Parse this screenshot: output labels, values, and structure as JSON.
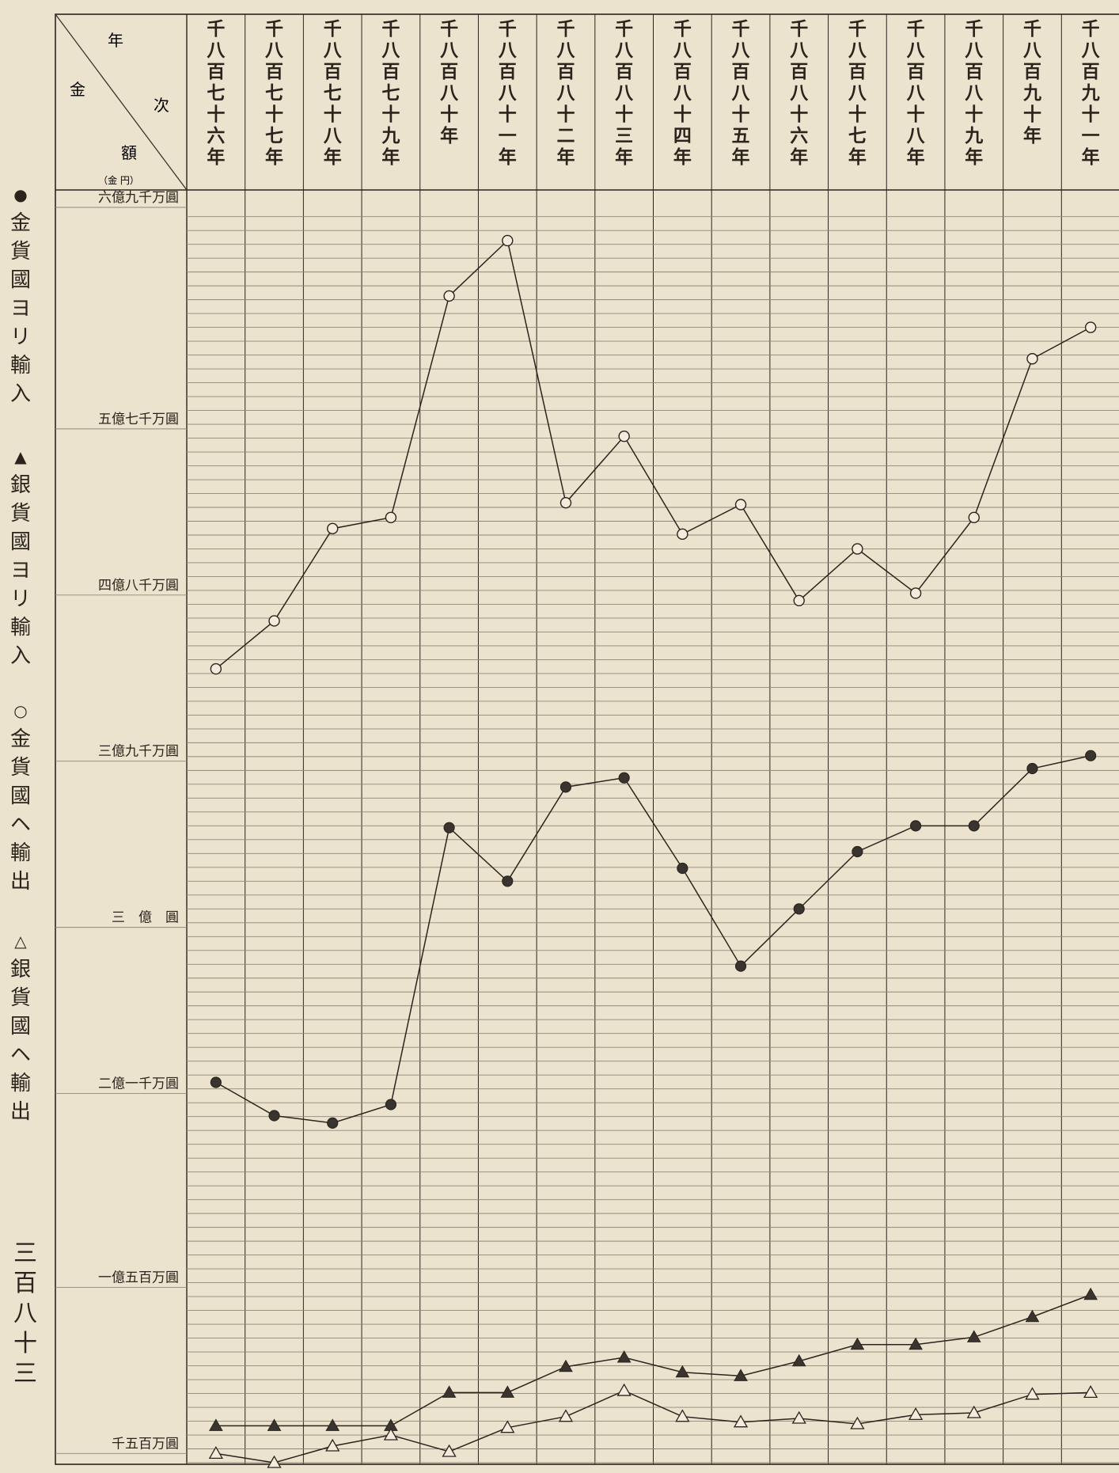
{
  "page_number": "三百八十三",
  "header": {
    "year": "年",
    "gold": "金",
    "next": "次",
    "amount": "額",
    "unit": "（金 円）"
  },
  "legend": [
    {
      "symbol": "●",
      "text": "金貨國ヨリ輸入",
      "icon": "filled-circle-icon"
    },
    {
      "symbol": "▲",
      "text": "銀貨國ヨリ輸入",
      "icon": "filled-triangle-icon"
    },
    {
      "symbol": "○",
      "text": "金貨國ヘ輸出",
      "icon": "open-circle-icon"
    },
    {
      "symbol": "△",
      "text": "銀貨國ヘ輸出",
      "icon": "open-triangle-icon"
    }
  ],
  "colors": {
    "paper": "#ece3cf",
    "ink": "#2a241c",
    "grid": "#8f8678"
  },
  "chart_data": {
    "type": "line",
    "title": "",
    "xlabel": "年",
    "ylabel": "金額",
    "categories": [
      "千八百七十六年",
      "千八百七十七年",
      "千八百七十八年",
      "千八百七十九年",
      "千八百八十年",
      "千八百八十一年",
      "千八百八十二年",
      "千八百八十三年",
      "千八百八十四年",
      "千八百八十五年",
      "千八百八十六年",
      "千八百八十七年",
      "千八百八十八年",
      "千八百八十九年",
      "千八百九十年",
      "千八百九十一年"
    ],
    "y_ticks": [
      {
        "value": 690,
        "label": "六億九千万圓"
      },
      {
        "value": 570,
        "label": "五億七千万圓"
      },
      {
        "value": 480,
        "label": "四億八千万圓"
      },
      {
        "value": 390,
        "label": "三億九千万圓"
      },
      {
        "value": 300,
        "label": "三　億　圓"
      },
      {
        "value": 210,
        "label": "二億一千万圓"
      },
      {
        "value": 105,
        "label": "一億五百万圓"
      },
      {
        "value": 15,
        "label": "千五百万圓"
      }
    ],
    "ylim": [
      10,
      690
    ],
    "grid": true,
    "series": [
      {
        "name": "金貨國ヘ輸出",
        "marker": "open-circle",
        "values": [
          440,
          466,
          516,
          522,
          642,
          672,
          530,
          566,
          513,
          529,
          477,
          505,
          481,
          522,
          608,
          625
        ]
      },
      {
        "name": "金貨國ヨリ輸入",
        "marker": "filled-circle",
        "values": [
          216,
          198,
          194,
          204,
          354,
          325,
          376,
          381,
          332,
          279,
          310,
          341,
          355,
          355,
          386,
          393
        ]
      },
      {
        "name": "銀貨國ヨリ輸入",
        "marker": "filled-triangle",
        "values": [
          30,
          30,
          30,
          30,
          48,
          48,
          62,
          67,
          59,
          57,
          65,
          74,
          74,
          78,
          89,
          101
        ]
      },
      {
        "name": "銀貨國ヘ輸出",
        "marker": "open-triangle",
        "values": [
          15,
          10,
          19,
          25,
          16,
          29,
          35,
          49,
          35,
          32,
          34,
          31,
          36,
          37,
          47,
          48
        ]
      }
    ]
  }
}
